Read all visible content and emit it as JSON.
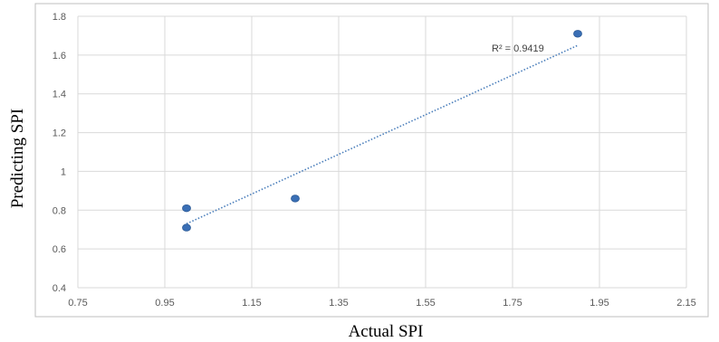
{
  "chart_data": {
    "type": "scatter",
    "xlabel": "Actual SPI",
    "ylabel": "Predicting SPI",
    "xlim": [
      0.75,
      2.15
    ],
    "ylim": [
      0.4,
      1.8
    ],
    "x_ticks": [
      "0.75",
      "0.95",
      "1.15",
      "1.35",
      "1.55",
      "1.75",
      "1.95",
      "2.15"
    ],
    "y_ticks": [
      "0.4",
      "0.6",
      "0.8",
      "1",
      "1.2",
      "1.4",
      "1.6",
      "1.8"
    ],
    "grid": true,
    "series": [
      {
        "points": [
          {
            "x": 1.0,
            "y": 0.81
          },
          {
            "x": 1.0,
            "y": 0.71
          },
          {
            "x": 1.25,
            "y": 0.86
          },
          {
            "x": 1.9,
            "y": 1.71
          }
        ]
      }
    ],
    "trendline": {
      "type": "linear",
      "x": [
        1.0,
        1.9
      ],
      "y": [
        0.73,
        1.65
      ],
      "style": "dotted"
    },
    "annotation": "R² = 0.9419",
    "colors": {
      "marker": "#3a6fb5",
      "trendline": "#4a7ebb",
      "grid": "#d9d9d9",
      "frame": "#bfbfbf"
    }
  }
}
